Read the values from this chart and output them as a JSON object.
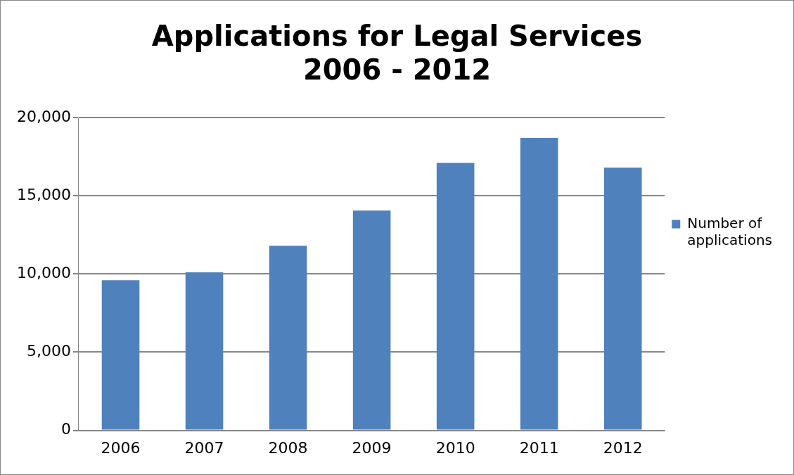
{
  "chart_data": {
    "type": "bar",
    "title": [
      "Applications for Legal Services",
      "2006 - 2012"
    ],
    "categories": [
      "2006",
      "2007",
      "2008",
      "2009",
      "2010",
      "2011",
      "2012"
    ],
    "series": [
      {
        "name": "Number of applications",
        "color": "#4f81bd",
        "values": [
          9600,
          10100,
          11800,
          14050,
          17100,
          18700,
          16800
        ]
      }
    ],
    "ylim": [
      0,
      20000
    ],
    "yticks": [
      {
        "value": 0,
        "label": "0"
      },
      {
        "value": 5000,
        "label": "5,000"
      },
      {
        "value": 10000,
        "label": "10,000"
      },
      {
        "value": 15000,
        "label": "15,000"
      },
      {
        "value": 20000,
        "label": "20,000"
      }
    ],
    "grid": "y",
    "legend": "right"
  }
}
